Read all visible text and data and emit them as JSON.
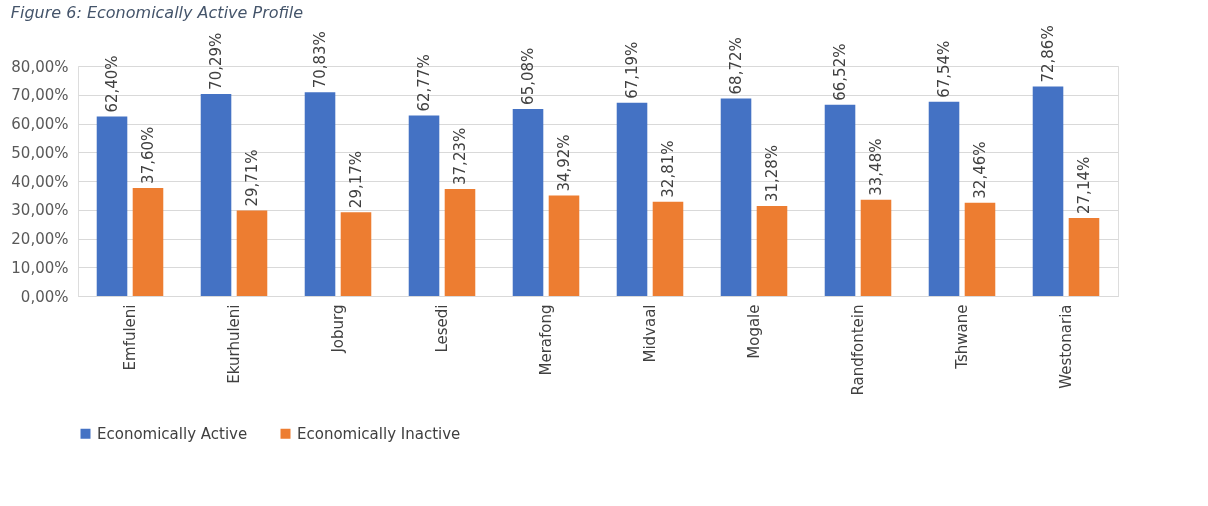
{
  "chart_data": {
    "type": "bar",
    "title": "Figure 6: Economically Active Profile",
    "categories": [
      "Emfuleni",
      "Ekurhuleni",
      "Joburg",
      "Lesedi",
      "Merafong",
      "Midvaal",
      "Mogale",
      "Randfontein",
      "Tshwane",
      "Westonaria"
    ],
    "series": [
      {
        "name": "Economically Active",
        "color": "#4472c4",
        "values": [
          62.4,
          70.29,
          70.83,
          62.77,
          65.08,
          67.19,
          68.72,
          66.52,
          67.54,
          72.86
        ],
        "value_labels": [
          "62,40%",
          "70,29%",
          "70,83%",
          "62,77%",
          "65,08%",
          "67,19%",
          "68,72%",
          "66,52%",
          "67,54%",
          "72,86%"
        ]
      },
      {
        "name": "Economically Inactive",
        "color": "#ed7d31",
        "values": [
          37.6,
          29.71,
          29.17,
          37.23,
          34.92,
          32.81,
          31.28,
          33.48,
          32.46,
          27.14
        ],
        "value_labels": [
          "37,60%",
          "29,71%",
          "29,17%",
          "37,23%",
          "34,92%",
          "32,81%",
          "31,28%",
          "33,48%",
          "32,46%",
          "27,14%"
        ]
      }
    ],
    "ylim": [
      0,
      80
    ],
    "yticks": [
      {
        "value": 0,
        "label": "0,00%"
      },
      {
        "value": 10,
        "label": "10,00%"
      },
      {
        "value": 20,
        "label": "20,00%"
      },
      {
        "value": 30,
        "label": "30,00%"
      },
      {
        "value": 40,
        "label": "40,00%"
      },
      {
        "value": 50,
        "label": "50,00%"
      },
      {
        "value": 60,
        "label": "60,00%"
      },
      {
        "value": 70,
        "label": "70,00%"
      },
      {
        "value": 80,
        "label": "80,00%"
      }
    ],
    "grid": "y",
    "legend": "bottom"
  }
}
